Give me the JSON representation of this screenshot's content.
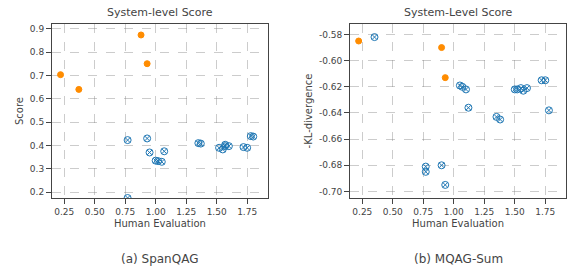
{
  "chart_data": [
    {
      "type": "scatter",
      "title": "System-level Score",
      "xlabel": "Human Evaluation",
      "ylabel": "Score",
      "annotations": [
        {
          "text": "(a) SpanQAG"
        }
      ],
      "xlim": [
        0.15,
        1.92
      ],
      "ylim": [
        0.175,
        0.92
      ],
      "xticks": [
        0.25,
        {
          "value": 0.5,
          "label": "0.50"
        },
        0.75,
        {
          "value": 1.0,
          "label": "1.00"
        },
        1.25,
        {
          "value": 1.5,
          "label": "1.50"
        },
        1.75
      ],
      "yticks": [
        0.2,
        0.3,
        0.4,
        0.5,
        0.6,
        0.7,
        0.8,
        0.9
      ],
      "grid": true,
      "series": [
        {
          "color": "#FF8C00",
          "marker": "circle",
          "x": [
            0.22,
            0.37,
            0.88,
            0.93
          ],
          "values": [
            0.703,
            0.64,
            0.873,
            0.75
          ]
        },
        {
          "color": "#1f77b4",
          "marker": "circle-x-open",
          "x": [
            0.77,
            0.77,
            0.93,
            0.95,
            1.0,
            1.02,
            1.05,
            1.07,
            1.35,
            1.37,
            1.52,
            1.55,
            1.57,
            1.57,
            1.6,
            1.72,
            1.75,
            1.78,
            1.8
          ],
          "values": [
            0.423,
            0.175,
            0.43,
            0.37,
            0.335,
            0.333,
            0.33,
            0.375,
            0.41,
            0.408,
            0.39,
            0.383,
            0.397,
            0.403,
            0.397,
            0.393,
            0.39,
            0.44,
            0.438
          ]
        }
      ]
    },
    {
      "type": "scatter",
      "title": "System-Level Score",
      "xlabel": "Human Evaluation",
      "ylabel": "-KL-divergence",
      "annotations": [
        {
          "text": "(b) MQAG-Sum"
        }
      ],
      "xlim": [
        0.15,
        1.92
      ],
      "ylim": [
        -0.705,
        -0.572
      ],
      "xticks": [
        0.25,
        {
          "value": 0.5,
          "label": "0.50"
        },
        0.75,
        {
          "value": 1.0,
          "label": "1.00"
        },
        1.25,
        {
          "value": 1.5,
          "label": "1.50"
        },
        1.75
      ],
      "yticks": [
        {
          "value": -0.7,
          "label": "-0.70"
        },
        -0.68,
        -0.66,
        -0.64,
        -0.62,
        {
          "value": -0.6,
          "label": "-0.60"
        },
        -0.58
      ],
      "grid": true,
      "series": [
        {
          "color": "#FF8C00",
          "marker": "circle",
          "x": [
            0.22,
            0.9,
            0.93
          ],
          "values": [
            -0.585,
            -0.59,
            -0.613
          ]
        },
        {
          "color": "#1f77b4",
          "marker": "circle-x-open",
          "x": [
            0.35,
            0.77,
            0.77,
            0.9,
            0.93,
            1.05,
            1.07,
            1.1,
            1.12,
            1.35,
            1.38,
            1.5,
            1.52,
            1.55,
            1.57,
            1.6,
            1.72,
            1.75,
            1.78
          ],
          "values": [
            -0.582,
            -0.681,
            -0.685,
            -0.68,
            -0.695,
            -0.619,
            -0.62,
            -0.622,
            -0.636,
            -0.643,
            -0.645,
            -0.622,
            -0.622,
            -0.621,
            -0.623,
            -0.621,
            -0.615,
            -0.615,
            -0.638
          ]
        }
      ]
    }
  ]
}
